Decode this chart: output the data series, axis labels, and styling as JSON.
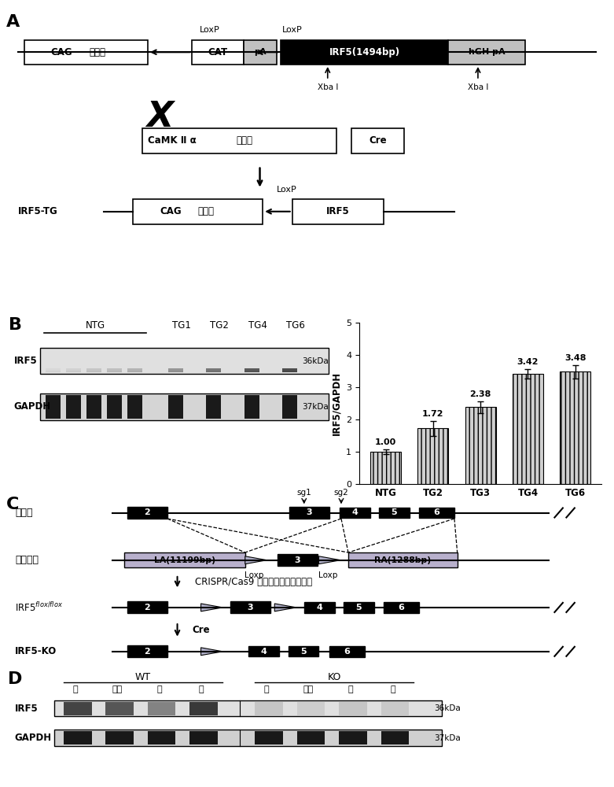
{
  "bar_values": [
    1.0,
    1.72,
    2.38,
    3.42,
    3.48
  ],
  "bar_errors": [
    0.08,
    0.22,
    0.18,
    0.15,
    0.2
  ],
  "bar_labels": [
    "NTG",
    "TG2",
    "TG3",
    "TG4",
    "TG6"
  ],
  "bar_color": "#c8c8c8",
  "ylabel": "IRF5/GAPDH",
  "ylim": [
    0,
    5
  ],
  "yticks": [
    0,
    1,
    2,
    3,
    4,
    5
  ],
  "bg_color": "#ffffff",
  "label_vals": [
    "1.00",
    "1.72",
    "2.38",
    "3.42",
    "3.48"
  ],
  "panel_labels": [
    "A",
    "B",
    "C",
    "D"
  ],
  "cag_label": "CAG",
  "qdz_label": "启动子",
  "cat_label": "CAT",
  "pa_label": "pA",
  "irf5_1494_label": "IRF5(1494bp)",
  "hgh_label": "hGH pA",
  "loxp_label": "LoxP",
  "loxp_label2": "Loxp",
  "xba_label": "Xba I",
  "camk_label": "CaMK Ⅱ α",
  "cre_label": "Cre",
  "irf5tg_label": "IRF5-TG",
  "irf5_label2": "IRF5",
  "ntg_label": "NTG",
  "tg_labels": [
    "TG1",
    "TG2",
    "TG4",
    "TG6"
  ],
  "irf5_label": "IRF5",
  "gapdh_label": "GAPDH",
  "kda36": "36kDa",
  "kda37": "37kDa",
  "wt_label": "野生型",
  "donor_label": "供体载体",
  "la_label": "LA(11199bp)",
  "ra_label": "RA(1288bp)",
  "sg1_label": "sg1",
  "sg2_label": "sg2",
  "crispr_label": "CRISPR/Cas9 介导的额同源重组修复",
  "floxflox_label": "IRF5$^{flox/flox}$",
  "ko_label": "IRF5-KO",
  "wt_blot_label": "WT",
  "ko_blot_label": "KO",
  "brain": "脑",
  "fat": "脂肪",
  "lung": "肺",
  "kidney": "肆",
  "cre_text": "Cre"
}
